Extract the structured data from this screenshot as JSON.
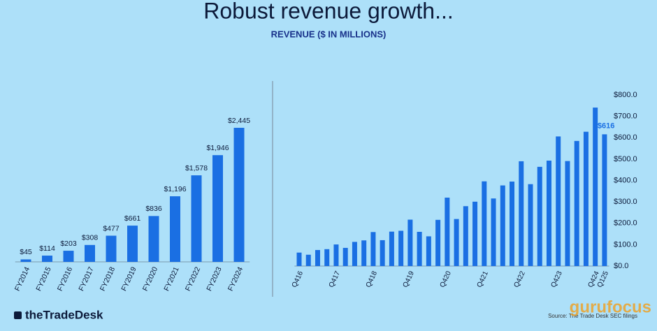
{
  "title": "Robust revenue growth...",
  "subtitle": "REVENUE ($ IN MILLIONS)",
  "logo": "theTradeDesk",
  "source": "Source: The Trade Desk SEC filings",
  "watermark": "gurufocus",
  "chart_data": [
    {
      "type": "bar",
      "color": "#1a6fe3",
      "categories": [
        "FY2014",
        "FY2015",
        "FY2016",
        "FY2017",
        "FY2018",
        "FY2019",
        "FY2020",
        "FY2021",
        "FY2022",
        "FY2023",
        "FY2024"
      ],
      "values": [
        45,
        114,
        203,
        308,
        477,
        661,
        836,
        1196,
        1578,
        1946,
        2445
      ],
      "value_labels": [
        "$45",
        "$114",
        "$203",
        "$308",
        "$477",
        "$661",
        "$836",
        "$1,196",
        "$1,578",
        "$1,946",
        "$2,445"
      ]
    },
    {
      "type": "bar",
      "color": "#1a6fe3",
      "categories": [
        "Q416",
        null,
        null,
        null,
        "Q417",
        null,
        null,
        null,
        "Q418",
        null,
        null,
        null,
        "Q419",
        null,
        null,
        null,
        "Q420",
        null,
        null,
        null,
        "Q421",
        null,
        null,
        null,
        "Q422",
        null,
        null,
        null,
        "Q423",
        null,
        null,
        null,
        "Q424",
        "Q125"
      ],
      "values": [
        63,
        53,
        75,
        79,
        101,
        85,
        113,
        120,
        159,
        121,
        161,
        165,
        217,
        160,
        139,
        216,
        320,
        220,
        280,
        301,
        396,
        316,
        377,
        395,
        490,
        383,
        464,
        493,
        606,
        491,
        585,
        628,
        741,
        616
      ],
      "value_labels": [
        null,
        null,
        null,
        null,
        null,
        null,
        null,
        null,
        null,
        null,
        null,
        null,
        null,
        null,
        null,
        null,
        null,
        null,
        null,
        null,
        null,
        null,
        null,
        null,
        null,
        null,
        null,
        null,
        null,
        null,
        null,
        null,
        null,
        "$616"
      ],
      "ylim": [
        0,
        800
      ],
      "yticks": [
        {
          "value": 0,
          "label": "$0.0"
        },
        {
          "value": 100,
          "label": "$100.0"
        },
        {
          "value": 200,
          "label": "$200.0"
        },
        {
          "value": 300,
          "label": "$300.0"
        },
        {
          "value": 400,
          "label": "$400.0"
        },
        {
          "value": 500,
          "label": "$500.0"
        },
        {
          "value": 600,
          "label": "$600.0"
        },
        {
          "value": 700,
          "label": "$700.0"
        },
        {
          "value": 800,
          "label": "$800.0"
        }
      ],
      "grid": false
    }
  ]
}
